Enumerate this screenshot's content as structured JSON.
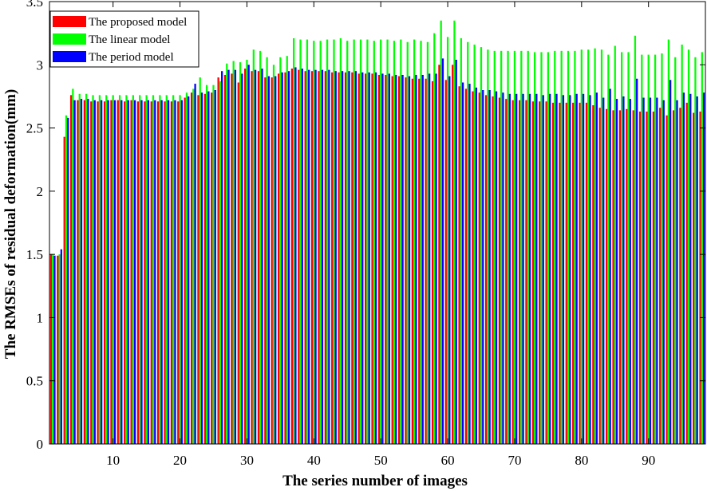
{
  "chart_data": {
    "type": "bar",
    "title": "",
    "xlabel": "The series number of images",
    "ylabel": "The RMSEs of residual deformation(mm)",
    "ylim": [
      0,
      3.5
    ],
    "xlim": [
      0.5,
      98.5
    ],
    "yticks": [
      0,
      0.5,
      1,
      1.5,
      2,
      2.5,
      3,
      3.5
    ],
    "ytick_labels": [
      "0",
      "0.5",
      "1",
      "1.5",
      "2",
      "2.5",
      "3",
      "3.5"
    ],
    "xticks": [
      10,
      20,
      30,
      40,
      50,
      60,
      70,
      80,
      90
    ],
    "xtick_labels": [
      "10",
      "20",
      "30",
      "40",
      "50",
      "60",
      "70",
      "80",
      "90"
    ],
    "grid": false,
    "legend_position": "top-left",
    "series": [
      {
        "name": "The proposed model",
        "color": "#ff0000",
        "values": [
          1.5,
          1.49,
          2.43,
          2.76,
          2.72,
          2.72,
          2.71,
          2.71,
          2.71,
          2.72,
          2.72,
          2.71,
          2.72,
          2.71,
          2.71,
          2.71,
          2.71,
          2.71,
          2.71,
          2.71,
          2.74,
          2.78,
          2.76,
          2.77,
          2.78,
          2.9,
          2.92,
          2.93,
          2.86,
          2.97,
          2.95,
          2.95,
          2.9,
          2.9,
          2.93,
          2.94,
          2.97,
          2.96,
          2.95,
          2.95,
          2.95,
          2.95,
          2.94,
          2.94,
          2.94,
          2.94,
          2.93,
          2.93,
          2.93,
          2.92,
          2.92,
          2.91,
          2.91,
          2.9,
          2.89,
          2.89,
          2.89,
          2.87,
          3.0,
          2.88,
          3.0,
          2.83,
          2.81,
          2.79,
          2.78,
          2.76,
          2.75,
          2.74,
          2.73,
          2.72,
          2.72,
          2.72,
          2.71,
          2.71,
          2.71,
          2.7,
          2.7,
          2.7,
          2.7,
          2.7,
          2.7,
          2.68,
          2.66,
          2.65,
          2.64,
          2.64,
          2.65,
          2.64,
          2.63,
          2.63,
          2.63,
          2.66,
          2.6,
          2.64,
          2.66,
          2.7,
          2.62,
          2.63
        ]
      },
      {
        "name": "The linear model",
        "color": "#00ff00",
        "values": [
          1.5,
          1.5,
          2.6,
          2.81,
          2.77,
          2.77,
          2.76,
          2.76,
          2.76,
          2.76,
          2.76,
          2.76,
          2.76,
          2.76,
          2.76,
          2.76,
          2.76,
          2.76,
          2.76,
          2.76,
          2.78,
          2.81,
          2.9,
          2.84,
          2.84,
          2.87,
          3.01,
          3.03,
          3.02,
          3.04,
          3.12,
          3.11,
          3.06,
          3.0,
          3.06,
          3.07,
          3.21,
          3.2,
          3.2,
          3.19,
          3.19,
          3.2,
          3.2,
          3.21,
          3.19,
          3.2,
          3.2,
          3.2,
          3.19,
          3.2,
          3.2,
          3.19,
          3.2,
          3.18,
          3.2,
          3.19,
          3.18,
          3.25,
          3.35,
          3.22,
          3.35,
          3.21,
          3.18,
          3.16,
          3.14,
          3.12,
          3.11,
          3.11,
          3.11,
          3.11,
          3.11,
          3.11,
          3.1,
          3.1,
          3.1,
          3.11,
          3.11,
          3.11,
          3.11,
          3.12,
          3.12,
          3.13,
          3.12,
          3.08,
          3.15,
          3.1,
          3.1,
          3.23,
          3.08,
          3.08,
          3.08,
          3.09,
          3.2,
          3.06,
          3.16,
          3.12,
          3.06,
          3.1
        ]
      },
      {
        "name": "The period model",
        "color": "#0000ff",
        "values": [
          1.49,
          1.54,
          2.58,
          2.72,
          2.73,
          2.73,
          2.72,
          2.72,
          2.72,
          2.72,
          2.72,
          2.72,
          2.72,
          2.72,
          2.72,
          2.72,
          2.72,
          2.72,
          2.72,
          2.72,
          2.75,
          2.85,
          2.78,
          2.79,
          2.8,
          2.95,
          2.96,
          2.96,
          2.93,
          3.0,
          2.96,
          2.97,
          2.91,
          2.91,
          2.94,
          2.95,
          2.98,
          2.97,
          2.96,
          2.96,
          2.96,
          2.96,
          2.95,
          2.95,
          2.95,
          2.95,
          2.94,
          2.94,
          2.94,
          2.93,
          2.93,
          2.92,
          2.92,
          2.91,
          2.92,
          2.92,
          2.93,
          2.93,
          3.05,
          2.91,
          3.04,
          2.86,
          2.85,
          2.82,
          2.8,
          2.8,
          2.79,
          2.78,
          2.77,
          2.77,
          2.77,
          2.77,
          2.77,
          2.76,
          2.77,
          2.77,
          2.76,
          2.76,
          2.77,
          2.77,
          2.76,
          2.78,
          2.74,
          2.81,
          2.73,
          2.75,
          2.73,
          2.89,
          2.74,
          2.74,
          2.74,
          2.72,
          2.88,
          2.72,
          2.78,
          2.77,
          2.75,
          2.78
        ]
      }
    ]
  }
}
